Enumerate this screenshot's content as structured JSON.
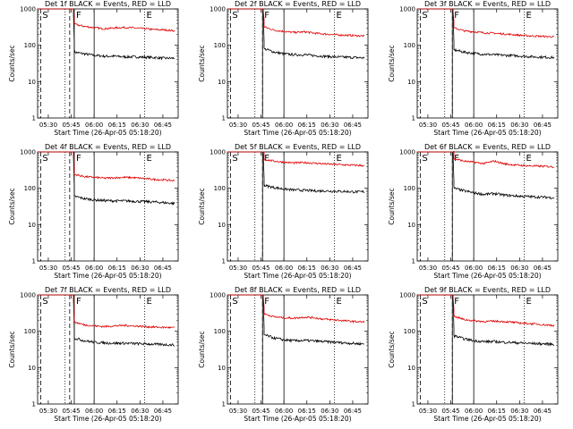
{
  "page": {
    "background": "#ffffff",
    "colors": {
      "events": "#000000",
      "lld": "#e00000",
      "axes": "#000000"
    }
  },
  "chart_data": [
    {
      "type": "line",
      "title": "Det 1f BLACK = Events, RED = LLD",
      "xlabel": "Start Time (26-Apr-05 05:18:20)",
      "ylabel": "Counts/sec",
      "yscale": "log",
      "ylim": [
        1,
        1000
      ],
      "xticks": [
        "05:30",
        "05:45",
        "06:00",
        "06:15",
        "06:30",
        "06:45"
      ],
      "xlim_minutes_from_0515": [
        8,
        100
      ],
      "yticks": [
        "1",
        "10",
        "100",
        "1000"
      ],
      "markers": [
        {
          "label": "S",
          "time": "05:25",
          "style": "dashed"
        },
        {
          "label": "F",
          "time": "05:47",
          "style": "solid"
        },
        {
          "label": "E",
          "time": "06:33",
          "style": "dotted"
        }
      ],
      "vlines": [
        {
          "time": "05:41",
          "style": "dotted"
        },
        {
          "time": "05:44",
          "style": "dashed"
        },
        {
          "time": "06:00",
          "style": "solid"
        }
      ],
      "series": [
        {
          "name": "Events",
          "color": "#000000",
          "start": "05:47",
          "values": [
            65,
            58,
            53,
            50,
            50,
            48,
            48,
            47,
            46,
            44,
            44
          ]
        },
        {
          "name": "LLD",
          "color": "#e00000",
          "start": "05:47",
          "values": [
            380,
            330,
            305,
            285,
            300,
            310,
            300,
            285,
            270,
            265,
            250
          ]
        }
      ]
    },
    {
      "type": "line",
      "title": "Det 2f BLACK = Events, RED = LLD",
      "xlabel": "Start Time (26-Apr-05 05:18:20)",
      "ylabel": "Counts/sec",
      "yscale": "log",
      "ylim": [
        1,
        1000
      ],
      "xticks": [
        "05:30",
        "05:45",
        "06:00",
        "06:15",
        "06:30",
        "06:45"
      ],
      "xlim_minutes_from_0515": [
        8,
        100
      ],
      "yticks": [
        "1",
        "10",
        "100",
        "1000"
      ],
      "markers": [
        {
          "label": "S",
          "time": "05:25",
          "style": "dashed"
        },
        {
          "label": "F",
          "time": "05:46",
          "style": "solid"
        },
        {
          "label": "E",
          "time": "06:33",
          "style": "dotted"
        }
      ],
      "vlines": [
        {
          "time": "05:41",
          "style": "dotted"
        },
        {
          "time": "05:46",
          "style": "dashed"
        },
        {
          "time": "06:00",
          "style": "solid"
        }
      ],
      "series": [
        {
          "name": "Events",
          "color": "#000000",
          "start": "05:47",
          "values": [
            80,
            65,
            58,
            55,
            55,
            52,
            50,
            48,
            47,
            46,
            45
          ]
        },
        {
          "name": "LLD",
          "color": "#e00000",
          "start": "05:47",
          "values": [
            320,
            260,
            240,
            225,
            235,
            215,
            205,
            195,
            190,
            185,
            180
          ]
        }
      ]
    },
    {
      "type": "line",
      "title": "Det 3f BLACK = Events, RED = LLD",
      "xlabel": "Start Time (26-Apr-05 05:18:20)",
      "ylabel": "Counts/sec",
      "yscale": "log",
      "ylim": [
        1,
        1000
      ],
      "xticks": [
        "05:30",
        "05:45",
        "06:00",
        "06:15",
        "06:30",
        "06:45"
      ],
      "xlim_minutes_from_0515": [
        8,
        100
      ],
      "yticks": [
        "1",
        "10",
        "100",
        "1000"
      ],
      "markers": [
        {
          "label": "S",
          "time": "05:25",
          "style": "dashed"
        },
        {
          "label": "F",
          "time": "05:46",
          "style": "solid"
        },
        {
          "label": "E",
          "time": "06:33",
          "style": "dotted"
        }
      ],
      "vlines": [
        {
          "time": "05:41",
          "style": "dotted"
        },
        {
          "time": "05:46",
          "style": "dashed"
        },
        {
          "time": "06:00",
          "style": "solid"
        }
      ],
      "series": [
        {
          "name": "Events",
          "color": "#000000",
          "start": "05:47",
          "values": [
            75,
            65,
            60,
            57,
            55,
            53,
            52,
            50,
            48,
            47,
            46
          ]
        },
        {
          "name": "LLD",
          "color": "#e00000",
          "start": "05:47",
          "values": [
            300,
            250,
            235,
            220,
            215,
            205,
            195,
            185,
            180,
            175,
            170
          ]
        }
      ]
    },
    {
      "type": "line",
      "title": "Det 4f BLACK = Events, RED = LLD",
      "xlabel": "Start Time (26-Apr-05 05:18:20)",
      "ylabel": "Counts/sec",
      "yscale": "log",
      "ylim": [
        1,
        1000
      ],
      "xticks": [
        "05:30",
        "05:45",
        "06:00",
        "06:15",
        "06:30",
        "06:45"
      ],
      "xlim_minutes_from_0515": [
        8,
        100
      ],
      "yticks": [
        "1",
        "10",
        "100",
        "1000"
      ],
      "markers": [
        {
          "label": "S",
          "time": "05:25",
          "style": "dashed"
        },
        {
          "label": "F",
          "time": "05:47",
          "style": "solid"
        },
        {
          "label": "E",
          "time": "06:33",
          "style": "dotted"
        }
      ],
      "vlines": [
        {
          "time": "05:41",
          "style": "dotted"
        },
        {
          "time": "05:44",
          "style": "dashed"
        },
        {
          "time": "06:00",
          "style": "solid"
        }
      ],
      "series": [
        {
          "name": "Events",
          "color": "#000000",
          "start": "05:47",
          "values": [
            60,
            52,
            48,
            46,
            45,
            45,
            44,
            43,
            42,
            40,
            38
          ]
        },
        {
          "name": "LLD",
          "color": "#e00000",
          "start": "05:47",
          "values": [
            240,
            210,
            200,
            190,
            195,
            200,
            195,
            185,
            175,
            170,
            160
          ]
        }
      ]
    },
    {
      "type": "line",
      "title": "Det 5f BLACK = Events, RED = LLD",
      "xlabel": "Start Time (26-Apr-05 05:18:20)",
      "ylabel": "Counts/sec",
      "yscale": "log",
      "ylim": [
        1,
        1000
      ],
      "xticks": [
        "05:30",
        "05:45",
        "06:00",
        "06:15",
        "06:30",
        "06:45"
      ],
      "xlim_minutes_from_0515": [
        8,
        100
      ],
      "yticks": [
        "1",
        "10",
        "100",
        "1000"
      ],
      "markers": [
        {
          "label": "S",
          "time": "05:25",
          "style": "dashed"
        },
        {
          "label": "F",
          "time": "05:46",
          "style": "solid"
        },
        {
          "label": "E",
          "time": "06:33",
          "style": "dotted"
        }
      ],
      "vlines": [
        {
          "time": "05:41",
          "style": "dotted"
        },
        {
          "time": "05:46",
          "style": "dashed"
        },
        {
          "time": "06:00",
          "style": "solid"
        }
      ],
      "series": [
        {
          "name": "Events",
          "color": "#000000",
          "start": "05:47",
          "values": [
            120,
            105,
            95,
            90,
            88,
            85,
            85,
            83,
            82,
            80,
            80
          ]
        },
        {
          "name": "LLD",
          "color": "#e00000",
          "start": "05:47",
          "values": [
            620,
            560,
            520,
            500,
            510,
            490,
            470,
            455,
            440,
            430,
            420
          ]
        }
      ]
    },
    {
      "type": "line",
      "title": "Det 6f BLACK = Events, RED = LLD",
      "xlabel": "Start Time (26-Apr-05 05:18:20)",
      "ylabel": "Counts/sec",
      "yscale": "log",
      "ylim": [
        1,
        1000
      ],
      "xticks": [
        "05:30",
        "05:45",
        "06:00",
        "06:15",
        "06:30",
        "06:45"
      ],
      "xlim_minutes_from_0515": [
        8,
        100
      ],
      "yticks": [
        "1",
        "10",
        "100",
        "1000"
      ],
      "markers": [
        {
          "label": "S",
          "time": "05:25",
          "style": "dashed"
        },
        {
          "label": "F",
          "time": "05:46",
          "style": "solid"
        },
        {
          "label": "E",
          "time": "06:33",
          "style": "dotted"
        }
      ],
      "vlines": [
        {
          "time": "05:41",
          "style": "dotted"
        },
        {
          "time": "05:46",
          "style": "dashed"
        },
        {
          "time": "06:00",
          "style": "solid"
        }
      ],
      "series": [
        {
          "name": "Events",
          "color": "#000000",
          "start": "05:47",
          "values": [
            100,
            85,
            75,
            68,
            72,
            65,
            62,
            60,
            58,
            57,
            55
          ]
        },
        {
          "name": "LLD",
          "color": "#e00000",
          "start": "05:47",
          "values": [
            650,
            560,
            520,
            480,
            560,
            470,
            440,
            420,
            410,
            400,
            390
          ]
        }
      ]
    },
    {
      "type": "line",
      "title": "Det 7f BLACK = Events, RED = LLD",
      "xlabel": "Start Time (26-Apr-05 05:18:20)",
      "ylabel": "Counts/sec",
      "yscale": "log",
      "ylim": [
        1,
        1000
      ],
      "xticks": [
        "05:30",
        "05:45",
        "06:00",
        "06:15",
        "06:30",
        "06:45"
      ],
      "xlim_minutes_from_0515": [
        8,
        100
      ],
      "yticks": [
        "1",
        "10",
        "100",
        "1000"
      ],
      "markers": [
        {
          "label": "S",
          "time": "05:25",
          "style": "dashed"
        },
        {
          "label": "F",
          "time": "05:47",
          "style": "solid"
        },
        {
          "label": "E",
          "time": "06:33",
          "style": "dotted"
        }
      ],
      "vlines": [
        {
          "time": "05:41",
          "style": "dotted"
        },
        {
          "time": "05:44",
          "style": "dashed"
        },
        {
          "time": "06:00",
          "style": "solid"
        }
      ],
      "series": [
        {
          "name": "Events",
          "color": "#000000",
          "start": "05:47",
          "values": [
            65,
            55,
            50,
            48,
            47,
            47,
            46,
            45,
            44,
            43,
            42
          ]
        },
        {
          "name": "LLD",
          "color": "#e00000",
          "start": "05:47",
          "values": [
            180,
            150,
            140,
            135,
            140,
            145,
            140,
            135,
            130,
            128,
            125
          ]
        }
      ]
    },
    {
      "type": "line",
      "title": "Det 8f BLACK = Events, RED = LLD",
      "xlabel": "Start Time (26-Apr-05 05:18:20)",
      "ylabel": "Counts/sec",
      "yscale": "log",
      "ylim": [
        1,
        1000
      ],
      "xticks": [
        "05:30",
        "05:45",
        "06:00",
        "06:15",
        "06:30",
        "06:45"
      ],
      "xlim_minutes_from_0515": [
        8,
        100
      ],
      "yticks": [
        "1",
        "10",
        "100",
        "1000"
      ],
      "markers": [
        {
          "label": "S",
          "time": "05:25",
          "style": "dashed"
        },
        {
          "label": "F",
          "time": "05:46",
          "style": "solid"
        },
        {
          "label": "E",
          "time": "06:33",
          "style": "dotted"
        }
      ],
      "vlines": [
        {
          "time": "05:41",
          "style": "dotted"
        },
        {
          "time": "05:46",
          "style": "dashed"
        },
        {
          "time": "06:00",
          "style": "solid"
        }
      ],
      "series": [
        {
          "name": "Events",
          "color": "#000000",
          "start": "05:47",
          "values": [
            80,
            65,
            58,
            55,
            56,
            54,
            52,
            50,
            48,
            46,
            45
          ]
        },
        {
          "name": "LLD",
          "color": "#e00000",
          "start": "05:47",
          "values": [
            300,
            250,
            235,
            230,
            245,
            235,
            215,
            205,
            195,
            185,
            180
          ]
        }
      ]
    },
    {
      "type": "line",
      "title": "Det 9f BLACK = Events, RED = LLD",
      "xlabel": "Start Time (26-Apr-05 05:18:20)",
      "ylabel": "Counts/sec",
      "yscale": "log",
      "ylim": [
        1,
        1000
      ],
      "xticks": [
        "05:30",
        "05:45",
        "06:00",
        "06:15",
        "06:30",
        "06:45"
      ],
      "xlim_minutes_from_0515": [
        8,
        100
      ],
      "yticks": [
        "1",
        "10",
        "100",
        "1000"
      ],
      "markers": [
        {
          "label": "S",
          "time": "05:25",
          "style": "dashed"
        },
        {
          "label": "F",
          "time": "05:46",
          "style": "solid"
        },
        {
          "label": "E",
          "time": "06:33",
          "style": "dotted"
        }
      ],
      "vlines": [
        {
          "time": "05:41",
          "style": "dotted"
        },
        {
          "time": "05:46",
          "style": "dashed"
        },
        {
          "time": "06:00",
          "style": "solid"
        }
      ],
      "series": [
        {
          "name": "Events",
          "color": "#000000",
          "start": "05:47",
          "values": [
            75,
            62,
            55,
            52,
            52,
            50,
            49,
            47,
            46,
            45,
            44
          ]
        },
        {
          "name": "LLD",
          "color": "#e00000",
          "start": "05:47",
          "values": [
            260,
            210,
            195,
            185,
            190,
            185,
            175,
            165,
            160,
            150,
            145
          ]
        }
      ]
    }
  ]
}
